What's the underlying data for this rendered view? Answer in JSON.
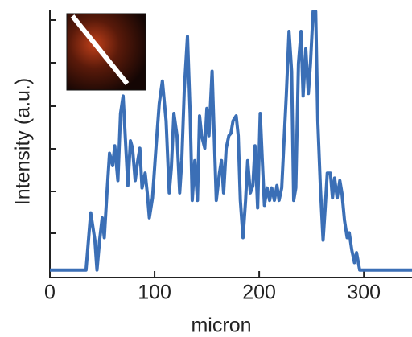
{
  "chart_data": {
    "type": "line",
    "xlabel": "micron",
    "ylabel": "Intensity (a.u.)",
    "x": [
      0,
      34.5,
      39,
      43,
      45,
      47.5,
      50,
      52,
      54.5,
      57,
      60,
      62,
      65,
      67.5,
      70,
      72,
      74.5,
      77,
      79,
      81.5,
      84,
      86,
      88,
      91,
      93,
      95,
      98,
      101.5,
      104.5,
      107.5,
      111,
      114,
      116,
      118.5,
      121.5,
      124,
      126,
      128.5,
      131.5,
      134,
      136,
      138.5,
      141,
      143,
      145,
      148,
      150,
      152,
      155,
      157,
      159,
      162,
      164,
      166,
      168.5,
      171,
      173,
      175,
      178,
      180,
      182,
      184.5,
      187,
      189,
      191.5,
      194,
      196,
      198.5,
      201,
      203,
      205,
      207.5,
      210,
      212,
      214.5,
      217,
      219,
      221.5,
      224,
      226,
      228.5,
      231,
      233,
      235,
      237.5,
      240,
      242,
      244.5,
      247,
      249,
      251.5,
      254,
      256,
      258.5,
      261,
      263,
      265,
      268,
      270,
      272,
      274.5,
      277,
      279,
      281.5,
      284,
      286,
      288.5,
      291,
      293,
      296,
      298.5,
      346
    ],
    "values": [
      0.3,
      0.3,
      2.6,
      1.5,
      0.3,
      1.5,
      2.4,
      1.6,
      3.4,
      5.0,
      4.5,
      5.3,
      3.9,
      6.6,
      7.3,
      5.7,
      3.7,
      5.5,
      5.2,
      3.9,
      4.7,
      5.2,
      3.6,
      4.2,
      3.4,
      2.4,
      3.2,
      5.3,
      7.0,
      7.9,
      6.3,
      3.4,
      4.4,
      6.6,
      5.7,
      3.4,
      4.7,
      7.6,
      9.7,
      6.6,
      3.1,
      4.7,
      3.1,
      6.5,
      5.7,
      5.2,
      6.8,
      5.7,
      8.3,
      5.7,
      3.1,
      4.2,
      4.7,
      3.4,
      5.2,
      5.7,
      5.8,
      6.3,
      6.5,
      5.7,
      3.1,
      1.6,
      3.1,
      4.7,
      3.4,
      3.7,
      5.3,
      2.8,
      6.6,
      4.7,
      2.9,
      3.6,
      3.1,
      3.6,
      3.1,
      3.7,
      3.1,
      3.6,
      5.7,
      7.4,
      9.9,
      8.3,
      3.1,
      3.6,
      8.6,
      9.9,
      7.3,
      9.2,
      7.4,
      8.6,
      10.7,
      10.7,
      6.3,
      3.6,
      1.5,
      2.8,
      4.2,
      4.2,
      3.2,
      4.0,
      3.2,
      3.9,
      3.4,
      2.3,
      1.6,
      1.8,
      1.1,
      0.6,
      1.0,
      0.3,
      0.3,
      0.3
    ],
    "color": "#3b6fb6",
    "xlim": [
      0,
      346
    ],
    "xticks": [
      0,
      100,
      200,
      300
    ],
    "ylim": [
      0,
      11
    ]
  }
}
